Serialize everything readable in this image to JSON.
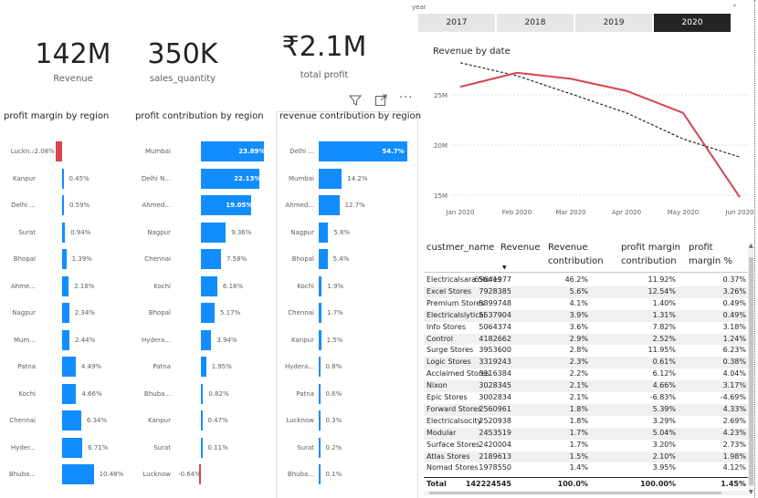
{
  "kpis": [
    {
      "value": "142M",
      "label": "Revenue"
    },
    {
      "value": "350K",
      "label": "sales_quantity"
    },
    {
      "value": "₹2.1M",
      "label": "total profit"
    }
  ],
  "year_slicer": {
    "label": "year",
    "options": [
      "2017",
      "2018",
      "2019",
      "2020"
    ],
    "selected": "2020"
  },
  "colors": {
    "bar": "#118dff",
    "negative": "#d64550",
    "line": "#d64550",
    "trend": "#252423"
  },
  "icons": [
    "filter-icon",
    "focus-mode-icon",
    "more-options-icon"
  ],
  "profit_margin": {
    "title": "profit margin by region",
    "rows": [
      {
        "cat": "Luckn...",
        "val": -2.08,
        "label": "-2.08%"
      },
      {
        "cat": "Kanpur",
        "val": 0.45,
        "label": "0.45%"
      },
      {
        "cat": "Delhi ...",
        "val": 0.59,
        "label": "0.59%"
      },
      {
        "cat": "Surat",
        "val": 0.94,
        "label": "0.94%"
      },
      {
        "cat": "Bhopal",
        "val": 1.39,
        "label": "1.39%"
      },
      {
        "cat": "Ahme...",
        "val": 2.18,
        "label": "2.18%"
      },
      {
        "cat": "Nagpur",
        "val": 2.34,
        "label": "2.34%"
      },
      {
        "cat": "Mum...",
        "val": 2.44,
        "label": "2.44%"
      },
      {
        "cat": "Patna",
        "val": 4.49,
        "label": "4.49%"
      },
      {
        "cat": "Kochi",
        "val": 4.66,
        "label": "4.66%"
      },
      {
        "cat": "Chennai",
        "val": 6.34,
        "label": "6.34%"
      },
      {
        "cat": "Hyder...",
        "val": 6.71,
        "label": "6.71%"
      },
      {
        "cat": "Bhuba...",
        "val": 10.48,
        "label": "10.48%"
      }
    ]
  },
  "profit_contribution": {
    "title": "profit contribution by region",
    "rows": [
      {
        "cat": "Mumbai",
        "val": 23.89,
        "label": "23.89%"
      },
      {
        "cat": "Delhi N...",
        "val": 22.13,
        "label": "22.13%"
      },
      {
        "cat": "Ahmed...",
        "val": 19.05,
        "label": "19.05%"
      },
      {
        "cat": "Nagpur",
        "val": 9.36,
        "label": "9.36%"
      },
      {
        "cat": "Chennai",
        "val": 7.58,
        "label": "7.58%"
      },
      {
        "cat": "Kochi",
        "val": 6.18,
        "label": "6.18%"
      },
      {
        "cat": "Bhopal",
        "val": 5.17,
        "label": "5.17%"
      },
      {
        "cat": "Hydera...",
        "val": 3.94,
        "label": "3.94%"
      },
      {
        "cat": "Patna",
        "val": 1.95,
        "label": "1.95%"
      },
      {
        "cat": "Bhuba...",
        "val": 0.82,
        "label": "0.82%"
      },
      {
        "cat": "Kanpur",
        "val": 0.47,
        "label": "0.47%"
      },
      {
        "cat": "Surat",
        "val": 0.11,
        "label": "0.11%"
      },
      {
        "cat": "Lucknow",
        "val": -0.64,
        "label": "-0.64%"
      }
    ]
  },
  "revenue_contribution": {
    "title": "revenue contribution by region",
    "rows": [
      {
        "cat": "Delhi ...",
        "val": 54.7,
        "label": "54.7%"
      },
      {
        "cat": "Mumbai",
        "val": 14.2,
        "label": "14.2%"
      },
      {
        "cat": "Ahmed...",
        "val": 12.7,
        "label": "12.7%"
      },
      {
        "cat": "Nagpur",
        "val": 5.8,
        "label": "5.8%"
      },
      {
        "cat": "Bhopal",
        "val": 5.4,
        "label": "5.4%"
      },
      {
        "cat": "Kochi",
        "val": 1.9,
        "label": "1.9%"
      },
      {
        "cat": "Chennai",
        "val": 1.7,
        "label": "1.7%"
      },
      {
        "cat": "Kanpur",
        "val": 1.5,
        "label": "1.5%"
      },
      {
        "cat": "Hydera...",
        "val": 0.8,
        "label": "0.8%"
      },
      {
        "cat": "Patna",
        "val": 0.6,
        "label": "0.6%"
      },
      {
        "cat": "Lucknow",
        "val": 0.3,
        "label": "0.3%"
      },
      {
        "cat": "Surat",
        "val": 0.2,
        "label": "0.2%"
      },
      {
        "cat": "Bhuba...",
        "val": 0.1,
        "label": "0.1%"
      }
    ]
  },
  "chart_data": {
    "type": "line",
    "title": "Revenue by date",
    "x": [
      "Jan 2020",
      "Feb 2020",
      "Mar 2020",
      "Apr 2020",
      "May 2020",
      "Jun 2020"
    ],
    "y_ticks": [
      "25M",
      "20M",
      "15M"
    ],
    "ylim": [
      13,
      30
    ],
    "series": [
      {
        "values": [
          25.8,
          27.2,
          26.6,
          25.4,
          23.2,
          14.8
        ]
      }
    ],
    "trend": [
      28.2,
      26.9,
      25.1,
      23.2,
      20.6,
      18.8
    ],
    "grid": true
  },
  "table": {
    "headers": [
      "custmer_name",
      "Revenue",
      "Revenue contribution",
      "profit margin contribution",
      "profit margin %"
    ],
    "rows": [
      [
        "Electricalsara Stores",
        "65641977",
        "46.2%",
        "11.92%",
        "0.37%"
      ],
      [
        "Excel Stores",
        "7928385",
        "5.6%",
        "12.54%",
        "3.26%"
      ],
      [
        "Premium Stores",
        "5899748",
        "4.1%",
        "1.40%",
        "0.49%"
      ],
      [
        "Electricalslytical",
        "5537904",
        "3.9%",
        "1.31%",
        "0.49%"
      ],
      [
        "Info Stores",
        "5064374",
        "3.6%",
        "7.82%",
        "3.18%"
      ],
      [
        "Control",
        "4182662",
        "2.9%",
        "2.52%",
        "1.24%"
      ],
      [
        "Surge Stores",
        "3953600",
        "2.8%",
        "11.95%",
        "6.23%"
      ],
      [
        "Logic Stores",
        "3319243",
        "2.3%",
        "0.61%",
        "0.38%"
      ],
      [
        "Acclaimed Stores",
        "3116384",
        "2.2%",
        "6.12%",
        "4.04%"
      ],
      [
        "Nixon",
        "3028345",
        "2.1%",
        "4.66%",
        "3.17%"
      ],
      [
        "Epic Stores",
        "3002834",
        "2.1%",
        "-6.83%",
        "-4.69%"
      ],
      [
        "Forward Stores",
        "2560961",
        "1.8%",
        "5.39%",
        "4.33%"
      ],
      [
        "Electricalsocity",
        "2520938",
        "1.8%",
        "3.29%",
        "2.69%"
      ],
      [
        "Modular",
        "2453519",
        "1.7%",
        "5.04%",
        "4.23%"
      ],
      [
        "Surface Stores",
        "2420004",
        "1.7%",
        "3.20%",
        "2.73%"
      ],
      [
        "Atlas Stores",
        "2189613",
        "1.5%",
        "2.10%",
        "1.98%"
      ],
      [
        "Nomad Stores",
        "1978550",
        "1.4%",
        "3.95%",
        "4.12%"
      ]
    ],
    "total": [
      "Total",
      "142224545",
      "100.0%",
      "100.00%",
      "1.45%"
    ]
  }
}
